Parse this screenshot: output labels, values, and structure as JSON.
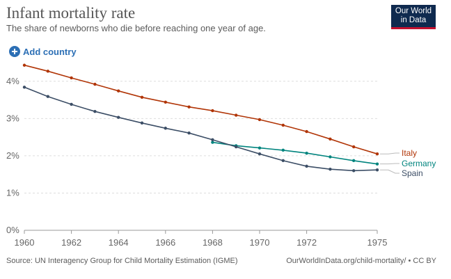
{
  "header": {
    "title": "Infant mortality rate",
    "subtitle": "The share of newborns who die before reaching one year of age."
  },
  "logo": {
    "line1": "Our World",
    "line2": "in Data"
  },
  "controls": {
    "add_country_label": "Add country"
  },
  "footer": {
    "source": "Source: UN Interagency Group for Child Mortality Estimation (IGME)",
    "link": "OurWorldInData.org/child-mortality/",
    "license": "• CC BY"
  },
  "colors": {
    "italy": "#b13507",
    "germany": "#00847e",
    "spain": "#3c4e66",
    "accent": "#2c6fb5",
    "logo_bg": "#0f2a4f",
    "logo_underline": "#c3102f"
  },
  "chart_data": {
    "type": "line",
    "title": "Infant mortality rate",
    "subtitle": "The share of newborns who die before reaching one year of age.",
    "xlabel": "",
    "ylabel": "",
    "xlim": [
      1960,
      1975
    ],
    "ylim": [
      0,
      4.5
    ],
    "x_ticks": [
      {
        "value": 1960,
        "label": "1960"
      },
      {
        "value": 1962,
        "label": "1962"
      },
      {
        "value": 1964,
        "label": "1964"
      },
      {
        "value": 1966,
        "label": "1966"
      },
      {
        "value": 1968,
        "label": "1968"
      },
      {
        "value": 1970,
        "label": "1970"
      },
      {
        "value": 1972,
        "label": "1972"
      },
      {
        "value": 1975,
        "label": "1975"
      }
    ],
    "y_ticks": [
      {
        "value": 0,
        "label": "0%"
      },
      {
        "value": 1,
        "label": "1%"
      },
      {
        "value": 2,
        "label": "2%"
      },
      {
        "value": 3,
        "label": "3%"
      },
      {
        "value": 4,
        "label": "4%"
      }
    ],
    "grid": "horizontal dashed",
    "legend": "line-end labels",
    "series": [
      {
        "name": "Italy",
        "color": "#b13507",
        "x": [
          1960,
          1961,
          1962,
          1963,
          1964,
          1965,
          1966,
          1967,
          1968,
          1969,
          1970,
          1971,
          1972,
          1973,
          1974,
          1975
        ],
        "values": [
          4.43,
          4.27,
          4.09,
          3.92,
          3.74,
          3.57,
          3.44,
          3.31,
          3.21,
          3.09,
          2.97,
          2.82,
          2.65,
          2.45,
          2.24,
          2.05
        ]
      },
      {
        "name": "Germany",
        "color": "#00847e",
        "x": [
          1968,
          1969,
          1970,
          1971,
          1972,
          1973,
          1974,
          1975
        ],
        "values": [
          2.36,
          2.27,
          2.21,
          2.15,
          2.07,
          1.97,
          1.87,
          1.78
        ]
      },
      {
        "name": "Spain",
        "color": "#3c4e66",
        "x": [
          1960,
          1961,
          1962,
          1963,
          1964,
          1965,
          1966,
          1967,
          1968,
          1969,
          1970,
          1971,
          1972,
          1973,
          1974,
          1975
        ],
        "values": [
          3.84,
          3.59,
          3.38,
          3.19,
          3.03,
          2.88,
          2.74,
          2.61,
          2.43,
          2.24,
          2.05,
          1.87,
          1.72,
          1.64,
          1.6,
          1.62
        ]
      }
    ]
  }
}
